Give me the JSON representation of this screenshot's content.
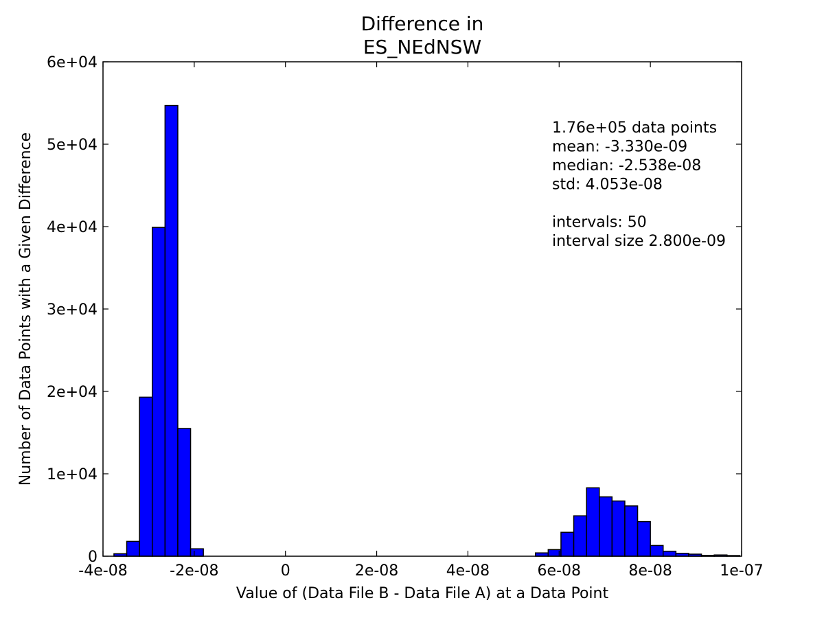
{
  "chart_data": {
    "type": "bar",
    "title": [
      "Difference in",
      "ES_NEdNSW"
    ],
    "xlabel": "Value of (Data File B - Data File A) at a Data Point",
    "ylabel": "Number of Data Points with a Given Difference",
    "xlim": [
      -4e-08,
      1e-07
    ],
    "ylim": [
      0,
      60000
    ],
    "grid": false,
    "bar_color": "#0000ff",
    "xticks": [
      {
        "value": -4e-08,
        "label": "-4e-08"
      },
      {
        "value": -2e-08,
        "label": "-2e-08"
      },
      {
        "value": 0,
        "label": "0"
      },
      {
        "value": 2e-08,
        "label": "2e-08"
      },
      {
        "value": 4e-08,
        "label": "4e-08"
      },
      {
        "value": 6e-08,
        "label": "6e-08"
      },
      {
        "value": 8e-08,
        "label": "8e-08"
      },
      {
        "value": 1e-07,
        "label": "1e-07"
      }
    ],
    "yticks": [
      {
        "value": 0,
        "label": "0"
      },
      {
        "value": 10000,
        "label": "1e+04"
      },
      {
        "value": 20000,
        "label": "2e+04"
      },
      {
        "value": 30000,
        "label": "3e+04"
      },
      {
        "value": 40000,
        "label": "4e+04"
      },
      {
        "value": 50000,
        "label": "5e+04"
      },
      {
        "value": 60000,
        "label": "6e+04"
      }
    ],
    "bin_start": -3.76e-08,
    "bin_width": 2.8e-09,
    "counts": [
      300,
      1800,
      19300,
      39900,
      54700,
      15500,
      900,
      0,
      0,
      0,
      0,
      0,
      0,
      0,
      0,
      0,
      0,
      0,
      0,
      0,
      0,
      0,
      0,
      0,
      0,
      0,
      0,
      0,
      0,
      0,
      0,
      0,
      0,
      400,
      800,
      2900,
      4900,
      8300,
      7200,
      6700,
      6100,
      4200,
      1300,
      600,
      350,
      250,
      100,
      150,
      80,
      0
    ],
    "stats_lines": [
      "1.76e+05 data points",
      "mean: -3.330e-09",
      "median: -2.538e-08",
      "std: 4.053e-08",
      "",
      "intervals: 50",
      "interval size 2.800e-09"
    ]
  }
}
